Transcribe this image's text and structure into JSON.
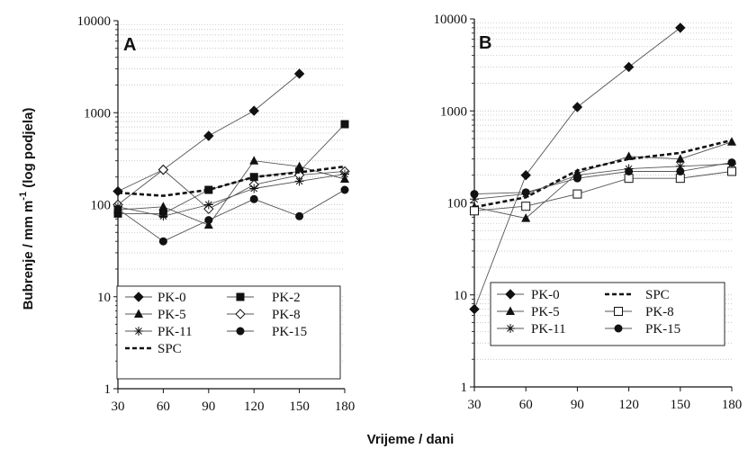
{
  "figure": {
    "ylabel": "Bubrenje / mm m",
    "ylabel_sup": "-1",
    "ylabel_suffix": "(log podjela)",
    "xlabel": "Vrijeme / dani"
  },
  "chart_data": [
    {
      "type": "line",
      "panel_label": "A",
      "scale_y": "log",
      "ylim": [
        1,
        10000
      ],
      "yticks": [
        "1",
        "10",
        "100",
        "1000",
        "10000"
      ],
      "xlim": [
        30,
        180
      ],
      "xticks": [
        "30",
        "60",
        "90",
        "120",
        "150",
        "180"
      ],
      "grid": "horizontal dotted",
      "legend_placement": "bottom-center",
      "series": [
        {
          "name": "PK-0",
          "marker": "diamond-filled",
          "line": "solid",
          "x": [
            30,
            60,
            90,
            120,
            150
          ],
          "y": [
            140,
            240,
            560,
            1050,
            2650
          ]
        },
        {
          "name": "PK-2",
          "marker": "square-filled",
          "line": "solid",
          "x": [
            30,
            60,
            90,
            120,
            150,
            180
          ],
          "y": [
            80,
            80,
            145,
            200,
            230,
            750
          ]
        },
        {
          "name": "PK-5",
          "marker": "triangle-filled",
          "line": "solid",
          "x": [
            30,
            60,
            90,
            120,
            150,
            180
          ],
          "y": [
            88,
            95,
            60,
            300,
            260,
            190
          ]
        },
        {
          "name": "PK-8",
          "marker": "diamond-open",
          "line": "solid",
          "x": [
            30,
            60,
            90,
            120,
            150,
            180
          ],
          "y": [
            100,
            240,
            90,
            165,
            210,
            230
          ]
        },
        {
          "name": "PK-11",
          "marker": "asterisk",
          "line": "solid",
          "x": [
            30,
            60,
            90,
            120,
            150,
            180
          ],
          "y": [
            95,
            75,
            100,
            150,
            180,
            215
          ]
        },
        {
          "name": "PK-15",
          "marker": "circle-filled",
          "line": "solid",
          "x": [
            30,
            60,
            90,
            120,
            150,
            180
          ],
          "y": [
            90,
            40,
            68,
            115,
            75,
            145
          ]
        },
        {
          "name": "SPC",
          "marker": "none",
          "line": "dashed",
          "x": [
            30,
            60,
            90,
            120,
            150,
            180
          ],
          "y": [
            135,
            125,
            145,
            200,
            225,
            260
          ]
        }
      ]
    },
    {
      "type": "line",
      "panel_label": "B",
      "scale_y": "log",
      "ylim": [
        1,
        10000
      ],
      "yticks": [
        "1",
        "10",
        "100",
        "1000",
        "10000"
      ],
      "xlim": [
        30,
        180
      ],
      "xticks": [
        "30",
        "60",
        "90",
        "120",
        "150",
        "180"
      ],
      "grid": "horizontal dotted",
      "legend_placement": "bottom-center",
      "series": [
        {
          "name": "PK-0",
          "marker": "diamond-filled",
          "line": "solid",
          "x": [
            30,
            60,
            90,
            120,
            150
          ],
          "y": [
            7,
            200,
            1100,
            3000,
            8000
          ]
        },
        {
          "name": "PK-5",
          "marker": "triangle-filled",
          "line": "solid",
          "x": [
            30,
            60,
            90,
            120,
            150,
            180
          ],
          "y": [
            90,
            68,
            210,
            320,
            300,
            460
          ]
        },
        {
          "name": "PK-11",
          "marker": "asterisk",
          "line": "solid",
          "x": [
            30,
            60,
            90,
            120,
            150,
            180
          ],
          "y": [
            110,
            125,
            200,
            235,
            250,
            265
          ]
        },
        {
          "name": "SPC",
          "marker": "none",
          "line": "dashed",
          "x": [
            30,
            60,
            90,
            120,
            150,
            180
          ],
          "y": [
            90,
            115,
            225,
            300,
            350,
            480
          ]
        },
        {
          "name": "PK-8",
          "marker": "square-open",
          "line": "solid",
          "x": [
            30,
            60,
            90,
            120,
            150,
            180
          ],
          "y": [
            82,
            92,
            125,
            185,
            185,
            220
          ]
        },
        {
          "name": "PK-15",
          "marker": "circle-filled",
          "line": "solid",
          "x": [
            30,
            60,
            90,
            120,
            150,
            180
          ],
          "y": [
            125,
            130,
            185,
            220,
            220,
            275
          ]
        }
      ]
    }
  ]
}
